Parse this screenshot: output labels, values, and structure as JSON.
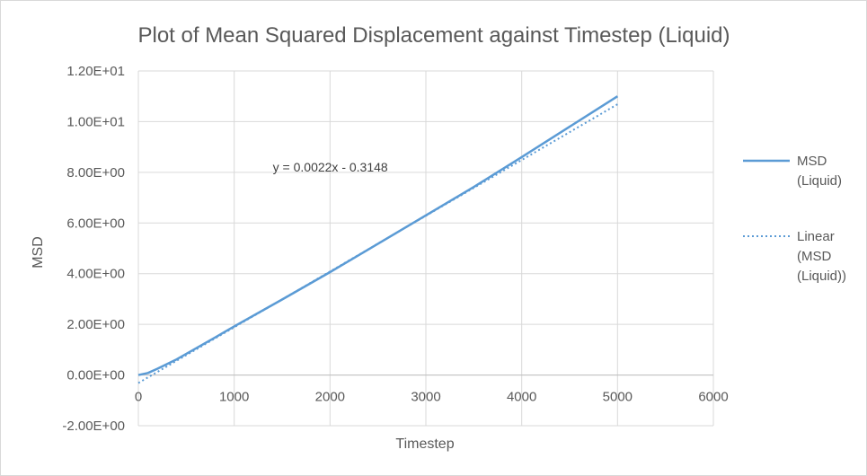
{
  "chart_data": {
    "type": "line",
    "title": "Plot of Mean Squared Displacement against Timestep (Liquid)",
    "xlabel": "Timestep",
    "ylabel": "MSD",
    "xlim": [
      0,
      6000
    ],
    "ylim": [
      -2,
      12
    ],
    "x_ticks": [
      0,
      1000,
      2000,
      3000,
      4000,
      5000,
      6000
    ],
    "x_tick_labels": [
      "0",
      "1000",
      "2000",
      "3000",
      "4000",
      "5000",
      "6000"
    ],
    "y_ticks": [
      -2,
      0,
      2,
      4,
      6,
      8,
      10,
      12
    ],
    "y_tick_labels": [
      "-2.00E+00",
      "0.00E+00",
      "2.00E+00",
      "4.00E+00",
      "6.00E+00",
      "8.00E+00",
      "1.00E+01",
      "1.20E+01"
    ],
    "grid": true,
    "legend_position": "right",
    "colors": {
      "series": "#5b9bd5",
      "trendline": "#5b9bd5",
      "grid": "#d9d9d9",
      "text": "#595959"
    },
    "series": [
      {
        "name": "MSD (Liquid)",
        "legend_lines": [
          "MSD",
          "(Liquid)"
        ],
        "style": "solid",
        "x": [
          0,
          100,
          200,
          400,
          600,
          800,
          1000,
          1500,
          2000,
          2500,
          3000,
          3500,
          4000,
          4500,
          5000
        ],
        "y": [
          0.0,
          0.08,
          0.25,
          0.62,
          1.05,
          1.48,
          1.92,
          2.98,
          4.06,
          5.18,
          6.3,
          7.42,
          8.6,
          9.8,
          11.0
        ]
      },
      {
        "name": "Linear (MSD (Liquid))",
        "legend_lines": [
          "Linear",
          "(MSD",
          "(Liquid))"
        ],
        "style": "dotted",
        "trendline": {
          "slope": 0.0022,
          "intercept": -0.3148,
          "x_range": [
            0,
            5000
          ]
        }
      }
    ],
    "annotations": [
      {
        "text": "y = 0.0022x - 0.3148",
        "x": 2200,
        "y": 8.2
      }
    ]
  }
}
